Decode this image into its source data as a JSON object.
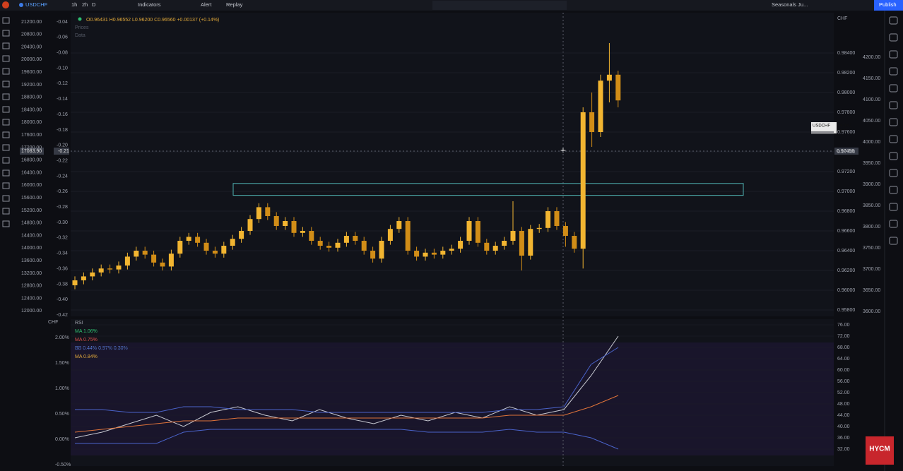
{
  "toolbar": {
    "symbol": "USDCHF",
    "intervals": [
      "1h",
      "2h",
      "D"
    ],
    "indicators": "Indicators",
    "alert": "Alert",
    "replay": "Replay",
    "layout": "Seasonals Ju...",
    "publish": "Publish"
  },
  "chart_data": [
    {
      "type": "candlestick",
      "legend": "O0.96431 H0.96552 L0.96200 C0.96560 +0.00137 (+0.14%)",
      "legend_items": [
        "Prices",
        "Data"
      ],
      "currency": "CHF",
      "colors": {
        "up": "#f2b531",
        "down": "#d18d17",
        "zone": "#4fb3b3"
      },
      "ylim": [
        0.95743,
        0.98807
      ],
      "yticks": [
        {
          "value": 0.984,
          "label": "0.98400"
        },
        {
          "value": 0.982,
          "label": "0.98200"
        },
        {
          "value": 0.98,
          "label": "0.98000"
        },
        {
          "value": 0.978,
          "label": "0.97800"
        },
        {
          "value": 0.976,
          "label": "0.97600"
        },
        {
          "value": 0.974,
          "label": "0.97400"
        },
        {
          "value": 0.972,
          "label": "0.97200"
        },
        {
          "value": 0.97,
          "label": "0.97000"
        },
        {
          "value": 0.968,
          "label": "0.96800"
        },
        {
          "value": 0.966,
          "label": "0.96600"
        },
        {
          "value": 0.964,
          "label": "0.96400"
        },
        {
          "value": 0.962,
          "label": "0.96200"
        },
        {
          "value": 0.96,
          "label": "0.96000"
        },
        {
          "value": 0.958,
          "label": "0.95800"
        }
      ],
      "zone": [
        0.9696,
        0.9708
      ],
      "left_scales": [
        [
          "21200.00",
          "20800.00",
          "20400.00",
          "20000.00",
          "19600.00",
          "19200.00",
          "18800.00",
          "18400.00",
          "18000.00",
          "17600.00",
          "17200.00",
          "16800.00",
          "16400.00",
          "16000.00",
          "15600.00",
          "15200.00",
          "14800.00",
          "14400.00",
          "14000.00",
          "13600.00",
          "13200.00",
          "12800.00",
          "12400.00",
          "12000.00"
        ],
        [
          "-0.04",
          "-0.06",
          "-0.08",
          "-0.10",
          "-0.12",
          "-0.14",
          "-0.16",
          "-0.18",
          "-0.20",
          "-0.22",
          "-0.24",
          "-0.26",
          "-0.28",
          "-0.30",
          "-0.32",
          "-0.34",
          "-0.36",
          "-0.38",
          "-0.40",
          "-0.42"
        ],
        [
          "4200.00",
          "4150.00",
          "4100.00",
          "4050.00",
          "4000.00",
          "3950.00",
          "3900.00",
          "3850.00",
          "3800.00",
          "3750.00",
          "3700.00",
          "3650.00",
          "3600.00"
        ]
      ],
      "price_labels": {
        "symbol": "USDCHF",
        "last": "0.97661",
        "countdown": "58:01",
        "cross": "0.97458",
        "cross_left1": "17083.90",
        "cross_left2": "-0.21"
      },
      "candles": [
        [
          0.9605,
          0.9614,
          0.9601,
          0.961
        ],
        [
          0.961,
          0.9618,
          0.9606,
          0.9614
        ],
        [
          0.9614,
          0.9622,
          0.961,
          0.9618
        ],
        [
          0.9618,
          0.9626,
          0.9614,
          0.9622
        ],
        [
          0.9622,
          0.9626,
          0.9617,
          0.9621
        ],
        [
          0.9621,
          0.9629,
          0.9617,
          0.9625
        ],
        [
          0.9625,
          0.9638,
          0.9621,
          0.9634
        ],
        [
          0.9634,
          0.9644,
          0.963,
          0.964
        ],
        [
          0.964,
          0.9644,
          0.9632,
          0.9636
        ],
        [
          0.9636,
          0.964,
          0.9624,
          0.9628
        ],
        [
          0.9628,
          0.9632,
          0.962,
          0.9624
        ],
        [
          0.9624,
          0.9641,
          0.962,
          0.9637
        ],
        [
          0.9637,
          0.9654,
          0.9633,
          0.965
        ],
        [
          0.965,
          0.9658,
          0.9646,
          0.9654
        ],
        [
          0.9654,
          0.9658,
          0.9644,
          0.9648
        ],
        [
          0.9648,
          0.9652,
          0.9636,
          0.964
        ],
        [
          0.964,
          0.9644,
          0.9633,
          0.9637
        ],
        [
          0.9637,
          0.9649,
          0.9633,
          0.9645
        ],
        [
          0.9645,
          0.9656,
          0.9641,
          0.9652
        ],
        [
          0.9652,
          0.9664,
          0.9648,
          0.966
        ],
        [
          0.966,
          0.9676,
          0.9656,
          0.9672
        ],
        [
          0.9672,
          0.9688,
          0.9668,
          0.9684
        ],
        [
          0.9684,
          0.9688,
          0.9671,
          0.9675
        ],
        [
          0.9675,
          0.9679,
          0.9661,
          0.9665
        ],
        [
          0.9665,
          0.9674,
          0.9661,
          0.967
        ],
        [
          0.967,
          0.9674,
          0.9654,
          0.9658
        ],
        [
          0.9658,
          0.9664,
          0.9654,
          0.966
        ],
        [
          0.966,
          0.9664,
          0.9646,
          0.965
        ],
        [
          0.965,
          0.9654,
          0.9641,
          0.9645
        ],
        [
          0.9645,
          0.9649,
          0.9639,
          0.9643
        ],
        [
          0.9643,
          0.9652,
          0.9639,
          0.9648
        ],
        [
          0.9648,
          0.9659,
          0.9644,
          0.9655
        ],
        [
          0.9655,
          0.9659,
          0.9646,
          0.965
        ],
        [
          0.965,
          0.9654,
          0.9636,
          0.964
        ],
        [
          0.964,
          0.9644,
          0.9628,
          0.9632
        ],
        [
          0.9632,
          0.9654,
          0.9628,
          0.965
        ],
        [
          0.965,
          0.9666,
          0.9646,
          0.9662
        ],
        [
          0.9662,
          0.9674,
          0.9658,
          0.967
        ],
        [
          0.967,
          0.9674,
          0.9636,
          0.964
        ],
        [
          0.964,
          0.9644,
          0.963,
          0.9634
        ],
        [
          0.9634,
          0.9642,
          0.963,
          0.9638
        ],
        [
          0.9638,
          0.9642,
          0.9632,
          0.9636
        ],
        [
          0.9636,
          0.9644,
          0.9632,
          0.964
        ],
        [
          0.964,
          0.9646,
          0.9636,
          0.9642
        ],
        [
          0.9642,
          0.9654,
          0.9638,
          0.965
        ],
        [
          0.965,
          0.9674,
          0.9646,
          0.967
        ],
        [
          0.967,
          0.9674,
          0.9644,
          0.9648
        ],
        [
          0.9648,
          0.9652,
          0.9636,
          0.964
        ],
        [
          0.964,
          0.9649,
          0.9636,
          0.9645
        ],
        [
          0.9645,
          0.9654,
          0.9641,
          0.965
        ],
        [
          0.965,
          0.969,
          0.9646,
          0.966
        ],
        [
          0.966,
          0.9664,
          0.962,
          0.9635
        ],
        [
          0.9635,
          0.9666,
          0.9631,
          0.9662
        ],
        [
          0.9662,
          0.9667,
          0.9658,
          0.9663
        ],
        [
          0.9663,
          0.9684,
          0.9659,
          0.968
        ],
        [
          0.968,
          0.9684,
          0.9661,
          0.9665
        ],
        [
          0.9665,
          0.9669,
          0.9644,
          0.9655
        ],
        [
          0.9655,
          0.9659,
          0.9638,
          0.9642
        ],
        [
          0.9642,
          0.9785,
          0.9622,
          0.978
        ],
        [
          0.978,
          0.98,
          0.9745,
          0.976
        ],
        [
          0.976,
          0.9818,
          0.9755,
          0.9812
        ],
        [
          0.9812,
          0.985,
          0.979,
          0.9818
        ],
        [
          0.9818,
          0.9822,
          0.9785,
          0.9792
        ]
      ]
    },
    {
      "type": "line",
      "title": "RSI",
      "legend": [
        "MA 1.06%",
        "MA 0.75%",
        "BB 0.44% 0.97% 0.30%",
        "MA 0.84%"
      ],
      "currency": "CHF",
      "ylim": [
        26,
        78
      ],
      "yticks": [
        {
          "value": 76,
          "label": "76.00"
        },
        {
          "value": 72,
          "label": "72.00"
        },
        {
          "value": 68,
          "label": "68.00"
        },
        {
          "value": 64,
          "label": "64.00"
        },
        {
          "value": 60,
          "label": "60.00"
        },
        {
          "value": 56,
          "label": "56.00"
        },
        {
          "value": 52,
          "label": "52.00"
        },
        {
          "value": 48,
          "label": "48.00"
        },
        {
          "value": 44,
          "label": "44.00"
        },
        {
          "value": 40,
          "label": "40.00"
        },
        {
          "value": 36,
          "label": "36.00"
        },
        {
          "value": 32,
          "label": "32.00"
        }
      ],
      "left_scale": [
        "2.00%",
        "1.50%",
        "1.00%",
        "0.50%",
        "0.00%",
        "-0.50%"
      ],
      "series": [
        {
          "color": "#c7c9d1",
          "values": [
            36,
            38,
            41,
            44,
            40,
            45,
            47,
            44,
            42,
            46,
            43,
            41,
            44,
            42,
            45,
            43,
            47,
            44,
            46,
            58,
            72
          ]
        },
        {
          "color": "#e0743a",
          "values": [
            38,
            39,
            40,
            41,
            42,
            42,
            43,
            43,
            43,
            43,
            43,
            43,
            43,
            43,
            43,
            43,
            44,
            44,
            44,
            47,
            51
          ]
        },
        {
          "color": "#4a63c9",
          "values": [
            46,
            46,
            45,
            45,
            47,
            47,
            46,
            46,
            46,
            45,
            45,
            45,
            45,
            45,
            45,
            45,
            46,
            46,
            47,
            62,
            68
          ]
        },
        {
          "color": "#4a63c9",
          "values": [
            34,
            34,
            34,
            34,
            38,
            39,
            39,
            39,
            39,
            39,
            39,
            39,
            39,
            38,
            38,
            38,
            39,
            38,
            38,
            36,
            32
          ]
        }
      ]
    }
  ],
  "logo": "HYCM"
}
